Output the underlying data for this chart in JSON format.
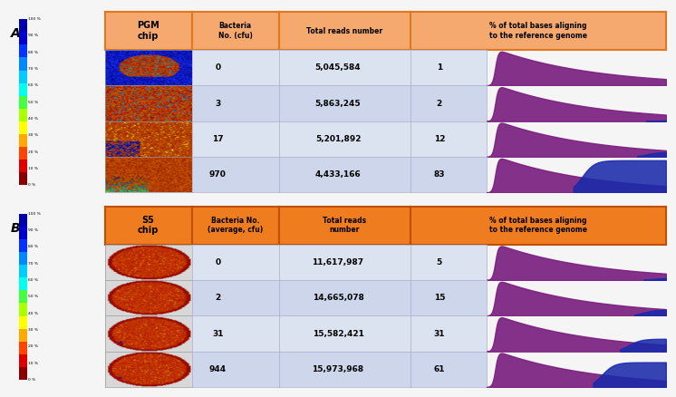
{
  "fig_width": 7.46,
  "fig_height": 4.38,
  "bg_color": "#f5f5f5",
  "section_A": {
    "label": "A",
    "chip_label": "PGM\nchip",
    "header_bg": "#f5a96e",
    "header_border": "#e07820",
    "col_headers": [
      "Bacteria\nNo. (cfu)",
      "Total reads number",
      "% of total bases aligning\nto the reference genome"
    ],
    "row_bg_even": "#dce3f0",
    "row_bg_odd": "#cdd6ea",
    "rows": [
      {
        "cfu": "0",
        "reads": "5,045,584",
        "pct": "1"
      },
      {
        "cfu": "3",
        "reads": "5,863,245",
        "pct": "2"
      },
      {
        "cfu": "17",
        "reads": "5,201,892",
        "pct": "12"
      },
      {
        "cfu": "970",
        "reads": "4,433,166",
        "pct": "83"
      }
    ],
    "pct_values": [
      1,
      2,
      12,
      83
    ]
  },
  "section_B": {
    "label": "B",
    "chip_label": "S5\nchip",
    "header_bg": "#f07c20",
    "header_border": "#c05000",
    "col_headers": [
      "Bacteria No.\n(average, cfu)",
      "Total reads\nnumber",
      "% of total bases aligning\nto the reference genome"
    ],
    "row_bg_even": "#dce3f0",
    "row_bg_odd": "#cdd6ea",
    "rows": [
      {
        "cfu": "0",
        "reads": "11,617,987",
        "pct": "5"
      },
      {
        "cfu": "2",
        "reads": "14,665,078",
        "pct": "15"
      },
      {
        "cfu": "31",
        "reads": "15,582,421",
        "pct": "31"
      },
      {
        "cfu": "944",
        "reads": "15,973,968",
        "pct": "61"
      }
    ],
    "pct_values": [
      5,
      15,
      31,
      61
    ]
  },
  "colorbar_colors": [
    "#0000aa",
    "#0000cc",
    "#0033ff",
    "#0088ff",
    "#00ccff",
    "#00ffee",
    "#44ff44",
    "#aaff00",
    "#ffff00",
    "#ffaa00",
    "#ff4400",
    "#dd0000",
    "#880000"
  ],
  "colorbar_ticks": [
    "100 %",
    "90 %",
    "80 %",
    "70 %",
    "60 %",
    "50 %",
    "40 %",
    "30 %",
    "20 %",
    "10 %",
    "0 %"
  ]
}
